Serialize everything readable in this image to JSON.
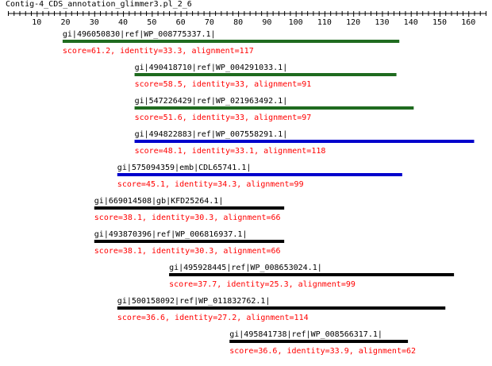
{
  "title": "Contig-4_CDS_annotation_glimmer3.pl_2_6",
  "axis": {
    "min": 0,
    "max": 166,
    "tick_labels": [
      10,
      20,
      30,
      40,
      50,
      60,
      70,
      80,
      90,
      100,
      110,
      120,
      130,
      140,
      150,
      160
    ],
    "minor_tick_step": 2
  },
  "colors": {
    "green": "#1f6b1f",
    "blue": "#0000cc",
    "black": "#000000",
    "score_text": "#ff0000"
  },
  "hits": [
    {
      "name": "gi|496050830|ref|WP_008775337.1|",
      "score_text": "score=61.2, identity=33.3, alignment=117",
      "start": 19,
      "end": 136,
      "color": "green"
    },
    {
      "name": "gi|490418710|ref|WP_004291033.1|",
      "score_text": "score=58.5, identity=33, alignment=91",
      "start": 44,
      "end": 135,
      "color": "green"
    },
    {
      "name": "gi|547226429|ref|WP_021963492.1|",
      "score_text": "score=51.6, identity=33, alignment=97",
      "start": 44,
      "end": 141,
      "color": "green"
    },
    {
      "name": "gi|494822883|ref|WP_007558291.1|",
      "score_text": "score=48.1, identity=33.1, alignment=118",
      "start": 44,
      "end": 162,
      "color": "blue"
    },
    {
      "name": "gi|575094359|emb|CDL65741.1|",
      "score_text": "score=45.1, identity=34.3, alignment=99",
      "start": 38,
      "end": 137,
      "color": "blue"
    },
    {
      "name": "gi|669014508|gb|KFD25264.1|",
      "score_text": "score=38.1, identity=30.3, alignment=66",
      "start": 30,
      "end": 96,
      "color": "black"
    },
    {
      "name": "gi|493870396|ref|WP_006816937.1|",
      "score_text": "score=38.1, identity=30.3, alignment=66",
      "start": 30,
      "end": 96,
      "color": "black"
    },
    {
      "name": "gi|495928445|ref|WP_008653024.1|",
      "score_text": "score=37.7, identity=25.3, alignment=99",
      "start": 56,
      "end": 155,
      "color": "black"
    },
    {
      "name": "gi|500158092|ref|WP_011832762.1|",
      "score_text": "score=36.6, identity=27.2, alignment=114",
      "start": 38,
      "end": 152,
      "color": "black"
    },
    {
      "name": "gi|495841738|ref|WP_008566317.1|",
      "score_text": "score=36.6, identity=33.9, alignment=62",
      "start": 77,
      "end": 139,
      "color": "black"
    }
  ]
}
